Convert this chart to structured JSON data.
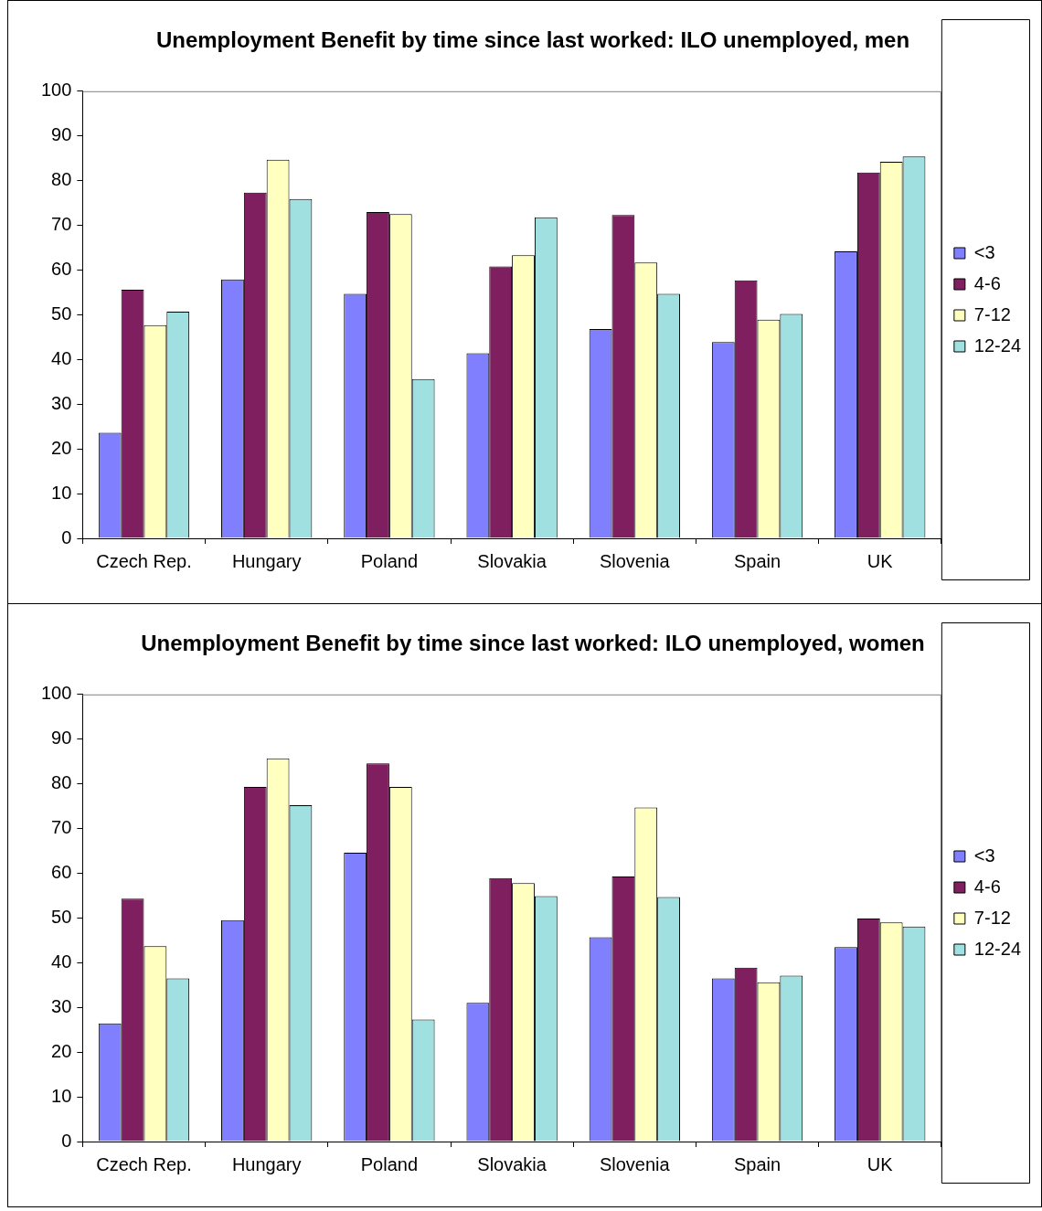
{
  "chart_data": [
    {
      "type": "bar",
      "title": "Unemployment Benefit by time since last worked: ILO unemployed, men",
      "categories": [
        "Czech Rep.",
        "Hungary",
        "Poland",
        "Slovakia",
        "Slovenia",
        "Spain",
        "UK"
      ],
      "series": [
        {
          "name": "<3",
          "color": "#8080ff",
          "values": [
            23.6,
            57.9,
            54.7,
            41.4,
            46.8,
            43.9,
            64.2
          ]
        },
        {
          "name": "4-6",
          "color": "#7f1f5f",
          "values": [
            55.6,
            77.3,
            73,
            60.8,
            72.3,
            57.7,
            81.8
          ]
        },
        {
          "name": "7-12",
          "color": "#ffffc0",
          "values": [
            47.7,
            84.7,
            72.5,
            63.3,
            61.7,
            48.9,
            84.2
          ]
        },
        {
          "name": "12-24",
          "color": "#a0e0e0",
          "values": [
            50.7,
            75.9,
            35.6,
            71.8,
            54.7,
            50.2,
            85.4
          ]
        }
      ],
      "ylim": [
        0,
        100
      ],
      "yticks": [
        0,
        10,
        20,
        30,
        40,
        50,
        60,
        70,
        80,
        90,
        100
      ],
      "grid": false,
      "legend": "right"
    },
    {
      "type": "bar",
      "title": "Unemployment Benefit by time since last worked: ILO unemployed, women",
      "categories": [
        "Czech Rep.",
        "Hungary",
        "Poland",
        "Slovakia",
        "Slovenia",
        "Spain",
        "UK"
      ],
      "series": [
        {
          "name": "<3",
          "color": "#8080ff",
          "values": [
            26.4,
            49.5,
            64.6,
            31,
            45.7,
            36.5,
            43.5
          ]
        },
        {
          "name": "4-6",
          "color": "#7f1f5f",
          "values": [
            54.3,
            79.3,
            84.6,
            58.9,
            59.3,
            38.9,
            49.9
          ]
        },
        {
          "name": "7-12",
          "color": "#ffffc0",
          "values": [
            43.7,
            85.7,
            79.3,
            57.8,
            74.7,
            35.6,
            49
          ]
        },
        {
          "name": "12-24",
          "color": "#a0e0e0",
          "values": [
            36.5,
            75.2,
            27.3,
            54.9,
            54.7,
            37.1,
            48.1
          ]
        }
      ],
      "ylim": [
        0,
        100
      ],
      "yticks": [
        0,
        10,
        20,
        30,
        40,
        50,
        60,
        70,
        80,
        90,
        100
      ],
      "grid": false,
      "legend": "right"
    }
  ]
}
